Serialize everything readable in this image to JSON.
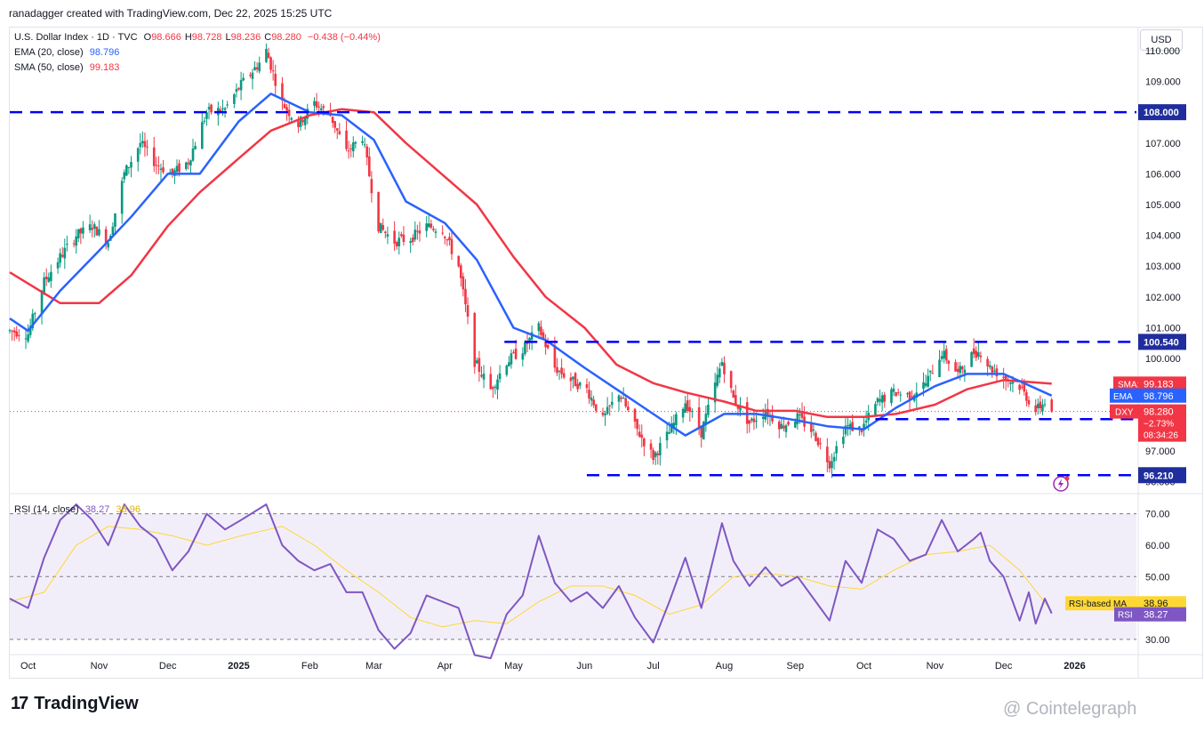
{
  "header": {
    "attribution": "ranadagger created with TradingView.com, Dec 22, 2025 15:25 UTC"
  },
  "legend": {
    "symbol": "U.S. Dollar Index · 1D · TVC",
    "ohlc": [
      {
        "k": "O",
        "v": "98.666"
      },
      {
        "k": "H",
        "v": "98.728"
      },
      {
        "k": "L",
        "v": "98.236"
      },
      {
        "k": "C",
        "v": "98.280"
      }
    ],
    "change": "−0.438 (−0.44%)",
    "ema_label": "EMA (20, close)",
    "ema_value": "98.796",
    "sma_label": "SMA (50, close)",
    "sma_value": "99.183"
  },
  "currency": "USD",
  "colors": {
    "up": "#089981",
    "down": "#f23645",
    "ema": "#2962ff",
    "sma": "#f23645",
    "rsi": "#7e57c2",
    "rsi_ma": "#fdd835",
    "level": "#0000ff"
  },
  "chart_data": {
    "type": "candlestick",
    "symbol": "DXY",
    "interval": "1D",
    "y_ticks": [
      "96.000",
      "97.000",
      "98.000",
      "99.000",
      "100.000",
      "101.000",
      "102.000",
      "103.000",
      "104.000",
      "105.000",
      "106.000",
      "107.000",
      "108.000",
      "109.000",
      "110.000"
    ],
    "ylim": [
      95.9,
      110.2
    ],
    "x_ticks": [
      "Oct",
      "Nov",
      "Dec",
      "2025",
      "Feb",
      "Mar",
      "Apr",
      "May",
      "Jun",
      "Jul",
      "Aug",
      "Sep",
      "Oct",
      "Nov",
      "Dec",
      "2026"
    ],
    "horizontal_levels": [
      {
        "value": 108.0,
        "label": "108.000",
        "x_from": "Sep 2024"
      },
      {
        "value": 100.54,
        "label": "100.540",
        "x_from": "May 2025"
      },
      {
        "value": 98.03,
        "label": "98.030",
        "x_from": "Oct 2025"
      },
      {
        "value": 96.21,
        "label": "96.210",
        "x_from": "Jun 2025"
      }
    ],
    "price_badges": [
      {
        "name": "SMA:MA",
        "value": "99.183"
      },
      {
        "name": "EMA",
        "value": "98.796"
      },
      {
        "name": "DXY",
        "value": "98.280",
        "change": "−2.73%",
        "countdown": "08:34:26"
      }
    ],
    "close_path": [
      [
        "2024-09-23",
        100.9
      ],
      [
        "2024-10-01",
        100.8
      ],
      [
        "2024-10-08",
        102.5
      ],
      [
        "2024-10-15",
        103.3
      ],
      [
        "2024-10-22",
        104.0
      ],
      [
        "2024-10-29",
        104.3
      ],
      [
        "2024-11-05",
        103.8
      ],
      [
        "2024-11-12",
        106.0
      ],
      [
        "2024-11-19",
        107.0
      ],
      [
        "2024-11-26",
        106.3
      ],
      [
        "2024-12-03",
        106.0
      ],
      [
        "2024-12-10",
        106.4
      ],
      [
        "2024-12-18",
        108.0
      ],
      [
        "2024-12-26",
        108.1
      ],
      [
        "2025-01-02",
        108.9
      ],
      [
        "2025-01-10",
        109.6
      ],
      [
        "2025-01-13",
        110.0
      ],
      [
        "2025-01-20",
        108.3
      ],
      [
        "2025-01-27",
        107.6
      ],
      [
        "2025-02-03",
        108.3
      ],
      [
        "2025-02-10",
        107.9
      ],
      [
        "2025-02-17",
        106.7
      ],
      [
        "2025-02-24",
        107.2
      ],
      [
        "2025-03-03",
        104.3
      ],
      [
        "2025-03-10",
        103.8
      ],
      [
        "2025-03-17",
        103.9
      ],
      [
        "2025-03-24",
        104.3
      ],
      [
        "2025-03-31",
        104.2
      ],
      [
        "2025-04-07",
        103.0
      ],
      [
        "2025-04-14",
        99.9
      ],
      [
        "2025-04-21",
        99.0
      ],
      [
        "2025-04-28",
        99.9
      ],
      [
        "2025-05-05",
        100.3
      ],
      [
        "2025-05-12",
        101.0
      ],
      [
        "2025-05-19",
        99.7
      ],
      [
        "2025-05-26",
        99.3
      ],
      [
        "2025-06-02",
        99.0
      ],
      [
        "2025-06-09",
        98.0
      ],
      [
        "2025-06-16",
        98.9
      ],
      [
        "2025-06-23",
        97.8
      ],
      [
        "2025-07-01",
        96.8
      ],
      [
        "2025-07-08",
        97.6
      ],
      [
        "2025-07-15",
        98.6
      ],
      [
        "2025-07-22",
        97.6
      ],
      [
        "2025-07-31",
        99.9
      ],
      [
        "2025-08-05",
        98.7
      ],
      [
        "2025-08-12",
        97.9
      ],
      [
        "2025-08-19",
        98.3
      ],
      [
        "2025-08-26",
        97.8
      ],
      [
        "2025-09-02",
        98.1
      ],
      [
        "2025-09-09",
        97.6
      ],
      [
        "2025-09-16",
        96.6
      ],
      [
        "2025-09-23",
        97.8
      ],
      [
        "2025-09-30",
        97.7
      ],
      [
        "2025-10-07",
        98.6
      ],
      [
        "2025-10-14",
        98.9
      ],
      [
        "2025-10-21",
        98.8
      ],
      [
        "2025-10-28",
        99.2
      ],
      [
        "2025-11-04",
        100.2
      ],
      [
        "2025-11-11",
        99.5
      ],
      [
        "2025-11-18",
        100.2
      ],
      [
        "2025-11-21",
        100.2
      ],
      [
        "2025-11-25",
        99.7
      ],
      [
        "2025-12-01",
        99.4
      ],
      [
        "2025-12-08",
        99.1
      ],
      [
        "2025-12-15",
        98.3
      ],
      [
        "2025-12-19",
        98.6
      ],
      [
        "2025-12-22",
        98.28
      ]
    ],
    "ema20": [
      [
        "2024-09-23",
        101.3
      ],
      [
        "2024-10-01",
        100.9
      ],
      [
        "2024-10-15",
        102.2
      ],
      [
        "2024-11-01",
        103.5
      ],
      [
        "2024-11-15",
        104.6
      ],
      [
        "2024-12-01",
        106.0
      ],
      [
        "2024-12-15",
        106.0
      ],
      [
        "2025-01-01",
        107.7
      ],
      [
        "2025-01-15",
        108.6
      ],
      [
        "2025-02-01",
        108.0
      ],
      [
        "2025-02-15",
        107.9
      ],
      [
        "2025-03-01",
        107.1
      ],
      [
        "2025-03-15",
        105.1
      ],
      [
        "2025-04-01",
        104.4
      ],
      [
        "2025-04-15",
        103.2
      ],
      [
        "2025-05-01",
        101.0
      ],
      [
        "2025-05-15",
        100.6
      ],
      [
        "2025-06-01",
        99.7
      ],
      [
        "2025-06-15",
        99.0
      ],
      [
        "2025-07-01",
        98.2
      ],
      [
        "2025-07-15",
        97.5
      ],
      [
        "2025-08-01",
        98.2
      ],
      [
        "2025-08-15",
        98.2
      ],
      [
        "2025-09-01",
        98.0
      ],
      [
        "2025-09-15",
        97.8
      ],
      [
        "2025-10-01",
        97.7
      ],
      [
        "2025-10-15",
        98.4
      ],
      [
        "2025-11-01",
        99.1
      ],
      [
        "2025-11-15",
        99.5
      ],
      [
        "2025-12-01",
        99.5
      ],
      [
        "2025-12-22",
        98.796
      ]
    ],
    "sma50": [
      [
        "2024-09-23",
        102.8
      ],
      [
        "2024-10-15",
        101.8
      ],
      [
        "2024-11-01",
        101.8
      ],
      [
        "2024-11-15",
        102.7
      ],
      [
        "2024-12-01",
        104.3
      ],
      [
        "2024-12-15",
        105.4
      ],
      [
        "2025-01-01",
        106.5
      ],
      [
        "2025-01-15",
        107.4
      ],
      [
        "2025-02-01",
        107.9
      ],
      [
        "2025-02-15",
        108.1
      ],
      [
        "2025-03-01",
        108.0
      ],
      [
        "2025-03-15",
        107.0
      ],
      [
        "2025-04-01",
        105.9
      ],
      [
        "2025-04-15",
        105.0
      ],
      [
        "2025-05-01",
        103.3
      ],
      [
        "2025-05-15",
        102.0
      ],
      [
        "2025-06-01",
        101.0
      ],
      [
        "2025-06-15",
        99.8
      ],
      [
        "2025-07-01",
        99.2
      ],
      [
        "2025-07-15",
        98.9
      ],
      [
        "2025-08-01",
        98.6
      ],
      [
        "2025-08-15",
        98.3
      ],
      [
        "2025-09-01",
        98.3
      ],
      [
        "2025-09-15",
        98.1
      ],
      [
        "2025-10-01",
        98.1
      ],
      [
        "2025-10-15",
        98.2
      ],
      [
        "2025-11-01",
        98.5
      ],
      [
        "2025-11-15",
        99.0
      ],
      [
        "2025-12-01",
        99.3
      ],
      [
        "2025-12-22",
        99.183
      ]
    ]
  },
  "rsi_panel": {
    "label": "RSI (14, close)",
    "rsi_value": "38.27",
    "rsi_ma_value": "38.96",
    "rsi_ma_label": "RSI-based MA",
    "rsi_badge_label": "RSI",
    "y_ticks": [
      "30.00",
      "40.00",
      "50.00",
      "60.00",
      "70.00"
    ],
    "ylim": [
      26,
      75
    ],
    "band": [
      30,
      70
    ],
    "rsi": [
      [
        "2024-09-23",
        43
      ],
      [
        "2024-10-01",
        40
      ],
      [
        "2024-10-08",
        56
      ],
      [
        "2024-10-15",
        68
      ],
      [
        "2024-10-22",
        73
      ],
      [
        "2024-10-29",
        68
      ],
      [
        "2024-11-05",
        60
      ],
      [
        "2024-11-12",
        73
      ],
      [
        "2024-11-19",
        66
      ],
      [
        "2024-11-26",
        62
      ],
      [
        "2024-12-03",
        52
      ],
      [
        "2024-12-10",
        58
      ],
      [
        "2024-12-18",
        70
      ],
      [
        "2024-12-26",
        65
      ],
      [
        "2025-01-02",
        68
      ],
      [
        "2025-01-13",
        73
      ],
      [
        "2025-01-20",
        60
      ],
      [
        "2025-01-27",
        55
      ],
      [
        "2025-02-03",
        52
      ],
      [
        "2025-02-10",
        54
      ],
      [
        "2025-02-17",
        45
      ],
      [
        "2025-02-24",
        45
      ],
      [
        "2025-03-03",
        33
      ],
      [
        "2025-03-10",
        27
      ],
      [
        "2025-03-17",
        32
      ],
      [
        "2025-03-24",
        44
      ],
      [
        "2025-03-31",
        42
      ],
      [
        "2025-04-07",
        40
      ],
      [
        "2025-04-14",
        25
      ],
      [
        "2025-04-21",
        24
      ],
      [
        "2025-04-28",
        38
      ],
      [
        "2025-05-05",
        44
      ],
      [
        "2025-05-12",
        63
      ],
      [
        "2025-05-19",
        48
      ],
      [
        "2025-05-26",
        42
      ],
      [
        "2025-06-02",
        45
      ],
      [
        "2025-06-09",
        40
      ],
      [
        "2025-06-16",
        47
      ],
      [
        "2025-06-23",
        37
      ],
      [
        "2025-07-01",
        29
      ],
      [
        "2025-07-08",
        42
      ],
      [
        "2025-07-15",
        56
      ],
      [
        "2025-07-22",
        40
      ],
      [
        "2025-07-31",
        67
      ],
      [
        "2025-08-05",
        55
      ],
      [
        "2025-08-12",
        47
      ],
      [
        "2025-08-19",
        53
      ],
      [
        "2025-08-26",
        47
      ],
      [
        "2025-09-02",
        50
      ],
      [
        "2025-09-09",
        43
      ],
      [
        "2025-09-16",
        36
      ],
      [
        "2025-09-23",
        55
      ],
      [
        "2025-09-30",
        48
      ],
      [
        "2025-10-07",
        65
      ],
      [
        "2025-10-14",
        62
      ],
      [
        "2025-10-21",
        55
      ],
      [
        "2025-10-28",
        57
      ],
      [
        "2025-11-04",
        68
      ],
      [
        "2025-11-11",
        58
      ],
      [
        "2025-11-18",
        62
      ],
      [
        "2025-11-21",
        64
      ],
      [
        "2025-11-25",
        55
      ],
      [
        "2025-12-01",
        50
      ],
      [
        "2025-12-08",
        36
      ],
      [
        "2025-12-12",
        45
      ],
      [
        "2025-12-15",
        35
      ],
      [
        "2025-12-19",
        43
      ],
      [
        "2025-12-22",
        38.27
      ]
    ],
    "rsi_ma": [
      [
        "2024-09-23",
        42
      ],
      [
        "2024-10-08",
        45
      ],
      [
        "2024-10-22",
        60
      ],
      [
        "2024-11-05",
        66
      ],
      [
        "2024-11-19",
        65
      ],
      [
        "2024-12-03",
        63
      ],
      [
        "2024-12-18",
        60
      ],
      [
        "2025-01-02",
        63
      ],
      [
        "2025-01-20",
        66
      ],
      [
        "2025-02-03",
        60
      ],
      [
        "2025-02-17",
        52
      ],
      [
        "2025-03-03",
        45
      ],
      [
        "2025-03-17",
        37
      ],
      [
        "2025-03-31",
        34
      ],
      [
        "2025-04-14",
        36
      ],
      [
        "2025-04-28",
        35
      ],
      [
        "2025-05-12",
        42
      ],
      [
        "2025-05-26",
        47
      ],
      [
        "2025-06-09",
        47
      ],
      [
        "2025-06-23",
        44
      ],
      [
        "2025-07-08",
        38
      ],
      [
        "2025-07-22",
        41
      ],
      [
        "2025-08-05",
        50
      ],
      [
        "2025-08-19",
        51
      ],
      [
        "2025-09-02",
        50
      ],
      [
        "2025-09-16",
        47
      ],
      [
        "2025-09-30",
        46
      ],
      [
        "2025-10-14",
        52
      ],
      [
        "2025-10-28",
        57
      ],
      [
        "2025-11-11",
        58
      ],
      [
        "2025-11-25",
        60
      ],
      [
        "2025-12-08",
        52
      ],
      [
        "2025-12-22",
        38.96
      ]
    ]
  },
  "branding": {
    "tv_logo": "TradingView",
    "watermark": "@ Cointelegraph"
  }
}
